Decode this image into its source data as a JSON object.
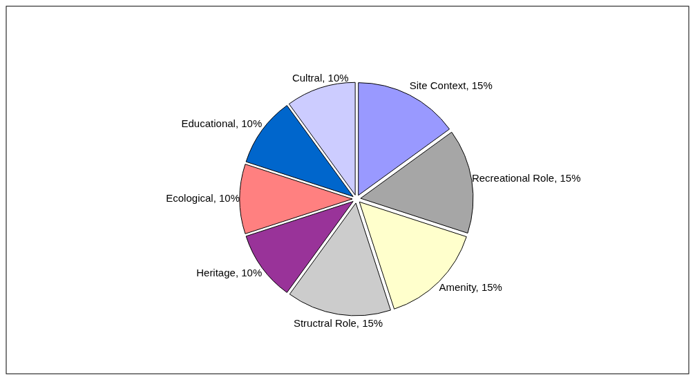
{
  "chart_data": {
    "type": "pie",
    "categories": [
      "Site Context",
      "Recreational Role",
      "Amenity",
      "Structral Role",
      "Heritage",
      "Ecological",
      "Educational",
      "Cultral"
    ],
    "values": [
      15,
      15,
      15,
      15,
      10,
      10,
      10,
      10
    ],
    "colors": [
      "#9999ff",
      "#a6a6a6",
      "#ffffcc",
      "#cccccc",
      "#993399",
      "#ff8080",
      "#0066cc",
      "#ccccff"
    ],
    "value_labels": [
      "15%",
      "15%",
      "15%",
      "15%",
      "10%",
      "10%",
      "10%",
      "10%"
    ]
  }
}
